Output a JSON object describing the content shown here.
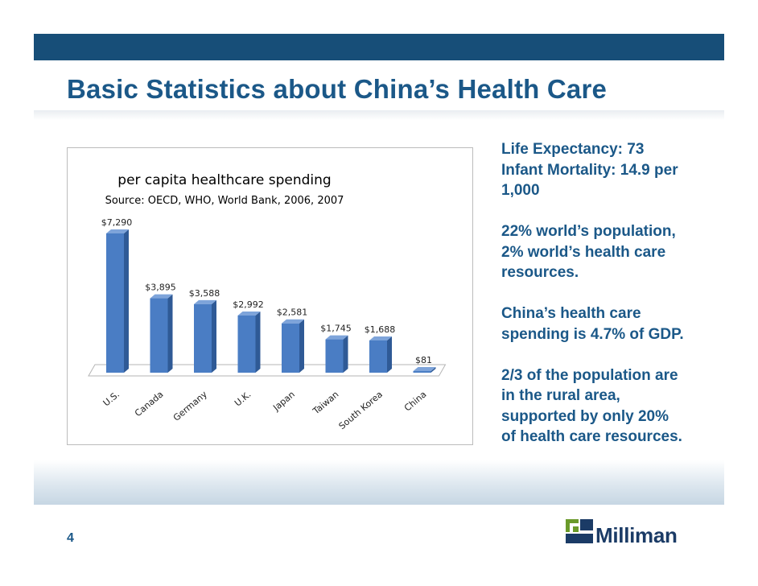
{
  "slide": {
    "title": "Basic Statistics about China’s Health Care",
    "page_number": "4",
    "logo_text": "Milliman",
    "colors": {
      "title": "#1b5888",
      "bar": "#4a7dc4",
      "top_bar": "#174e78"
    }
  },
  "facts": [
    "Life Expectancy: 73 Infant Mortality: 14.9 per 1,000",
    "22% world’s population, 2% world’s health care resources.",
    "China’s health care spending is 4.7% of GDP.",
    "2/3 of the population are in the rural area, supported by only 20% of health care resources."
  ],
  "chart_data": {
    "type": "bar",
    "title": "per capita healthcare spending",
    "subtitle": "Source: OECD, WHO, World Bank, 2006, 2007",
    "categories": [
      "U.S.",
      "Canada",
      "Germany",
      "U.K.",
      "Japan",
      "Taiwan",
      "South Korea",
      "China"
    ],
    "values": [
      7290,
      3895,
      3588,
      2992,
      2581,
      1745,
      1688,
      81
    ],
    "labels": [
      "$7,290",
      "$3,895",
      "$3,588",
      "$2,992",
      "$2,581",
      "$1,745",
      "$1,688",
      "$81"
    ],
    "xlabel": "",
    "ylabel": "",
    "ylim": [
      0,
      7290
    ]
  }
}
